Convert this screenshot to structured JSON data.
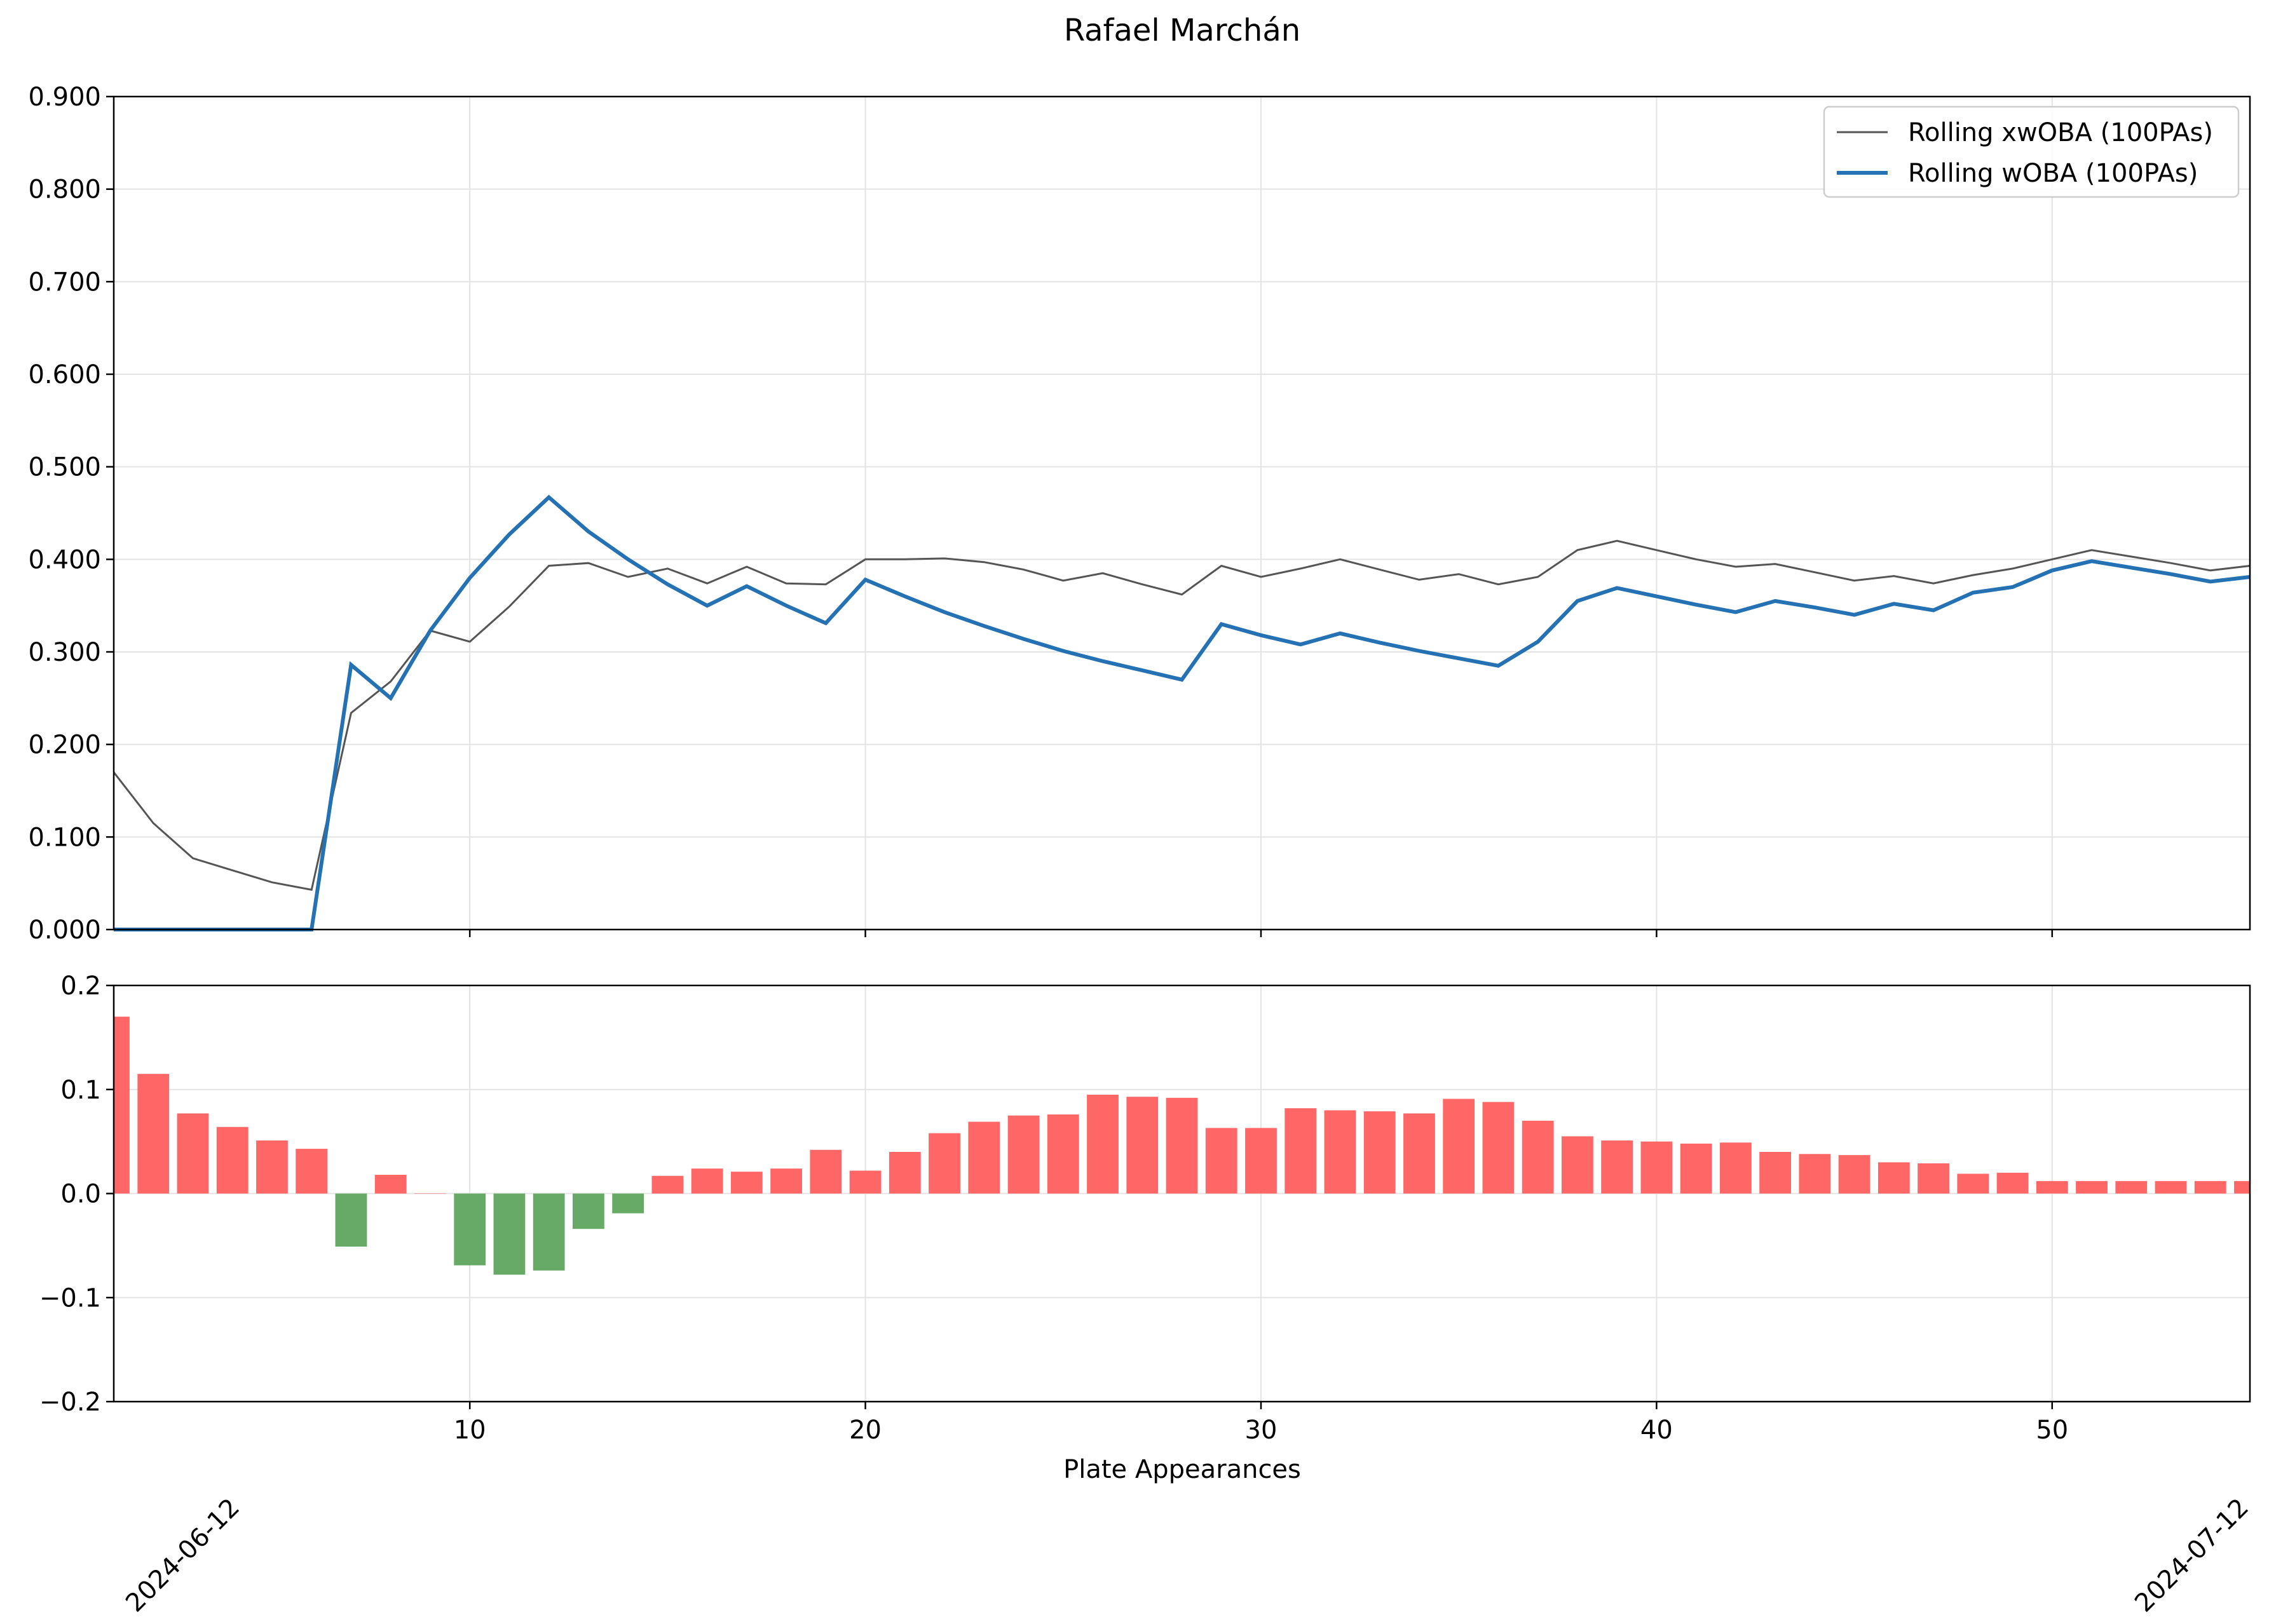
{
  "chart_data": {
    "title": "Rafael Marchán",
    "type": "line+bar",
    "xlabel": "Plate Appearances",
    "xlim": [
      1,
      55
    ],
    "x_ticks": [
      10,
      20,
      30,
      40,
      50
    ],
    "date_labels": [
      "2024-06-12",
      "2024-07-12"
    ],
    "grid": true,
    "legend_position": "top-right",
    "top_panel": {
      "ylim": [
        0,
        0.9
      ],
      "y_ticks": [
        "0.000",
        "0.100",
        "0.200",
        "0.300",
        "0.400",
        "0.500",
        "0.600",
        "0.700",
        "0.800",
        "0.900"
      ],
      "y_tick_values": [
        0,
        0.1,
        0.2,
        0.3,
        0.4,
        0.5,
        0.6,
        0.7,
        0.8,
        0.9
      ],
      "series": [
        {
          "name": "Rolling xwOBA (100PAs)",
          "color": "#555555",
          "x": [
            1,
            2,
            3,
            4,
            5,
            6,
            7,
            8,
            9,
            10,
            11,
            12,
            13,
            14,
            15,
            16,
            17,
            18,
            19,
            20,
            21,
            22,
            23,
            24,
            25,
            26,
            27,
            28,
            29,
            30,
            31,
            32,
            33,
            34,
            35,
            36,
            37,
            38,
            39,
            40,
            41,
            42,
            43,
            44,
            45,
            46,
            47,
            48,
            49,
            50,
            51,
            52,
            53,
            54,
            55
          ],
          "values": [
            0.17,
            0.115,
            0.077,
            0.064,
            0.051,
            0.043,
            0.234,
            0.268,
            0.323,
            0.311,
            0.349,
            0.393,
            0.396,
            0.381,
            0.39,
            0.374,
            0.392,
            0.374,
            0.373,
            0.4,
            0.4,
            0.401,
            0.397,
            0.389,
            0.377,
            0.385,
            0.373,
            0.362,
            0.393,
            0.381,
            0.39,
            0.4,
            0.389,
            0.378,
            0.384,
            0.373,
            0.381,
            0.41,
            0.42,
            0.41,
            0.4,
            0.392,
            0.395,
            0.386,
            0.377,
            0.382,
            0.374,
            0.383,
            0.39,
            0.4,
            0.41,
            0.403,
            0.396,
            0.388,
            0.393
          ]
        },
        {
          "name": "Rolling wOBA (100PAs)",
          "color": "#2471b3",
          "x": [
            1,
            2,
            3,
            4,
            5,
            6,
            7,
            8,
            9,
            10,
            11,
            12,
            13,
            14,
            15,
            16,
            17,
            18,
            19,
            20,
            21,
            22,
            23,
            24,
            25,
            26,
            27,
            28,
            29,
            30,
            31,
            32,
            33,
            34,
            35,
            36,
            37,
            38,
            39,
            40,
            41,
            42,
            43,
            44,
            45,
            46,
            47,
            48,
            49,
            50,
            51,
            52,
            53,
            54,
            55
          ],
          "values": [
            0.0,
            0.0,
            0.0,
            0.0,
            0.0,
            0.0,
            0.286,
            0.25,
            0.323,
            0.38,
            0.427,
            0.467,
            0.43,
            0.4,
            0.373,
            0.35,
            0.371,
            0.35,
            0.331,
            0.378,
            0.36,
            0.343,
            0.328,
            0.314,
            0.301,
            0.29,
            0.28,
            0.27,
            0.33,
            0.318,
            0.308,
            0.32,
            0.31,
            0.301,
            0.293,
            0.285,
            0.311,
            0.355,
            0.369,
            0.36,
            0.351,
            0.343,
            0.355,
            0.348,
            0.34,
            0.352,
            0.345,
            0.364,
            0.37,
            0.388,
            0.398,
            0.391,
            0.384,
            0.376,
            0.381
          ]
        }
      ]
    },
    "bottom_panel": {
      "type": "bar",
      "ylim": [
        -0.2,
        0.2
      ],
      "y_ticks": [
        "−0.2",
        "−0.1",
        "0.0",
        "0.1",
        "0.2"
      ],
      "y_tick_values": [
        -0.2,
        -0.1,
        0,
        0.1,
        0.2
      ],
      "positive_color": "#ff6666",
      "negative_color": "#66aa66",
      "x": [
        1,
        2,
        3,
        4,
        5,
        6,
        7,
        8,
        9,
        10,
        11,
        12,
        13,
        14,
        15,
        16,
        17,
        18,
        19,
        20,
        21,
        22,
        23,
        24,
        25,
        26,
        27,
        28,
        29,
        30,
        31,
        32,
        33,
        34,
        35,
        36,
        37,
        38,
        39,
        40,
        41,
        42,
        43,
        44,
        45,
        46,
        47,
        48,
        49,
        50,
        51,
        52,
        53,
        54,
        55
      ],
      "values": [
        0.17,
        0.115,
        0.077,
        0.064,
        0.051,
        0.043,
        -0.051,
        0.018,
        0.0,
        -0.069,
        -0.078,
        -0.074,
        -0.034,
        -0.019,
        0.017,
        0.024,
        0.021,
        0.024,
        0.042,
        0.022,
        0.04,
        0.058,
        0.069,
        0.075,
        0.076,
        0.095,
        0.093,
        0.092,
        0.063,
        0.063,
        0.082,
        0.08,
        0.079,
        0.077,
        0.091,
        0.088,
        0.07,
        0.055,
        0.051,
        0.05,
        0.048,
        0.049,
        0.04,
        0.038,
        0.037,
        0.03,
        0.029,
        0.019,
        0.02,
        0.012,
        0.012,
        0.012,
        0.012,
        0.012,
        0.012
      ]
    }
  }
}
